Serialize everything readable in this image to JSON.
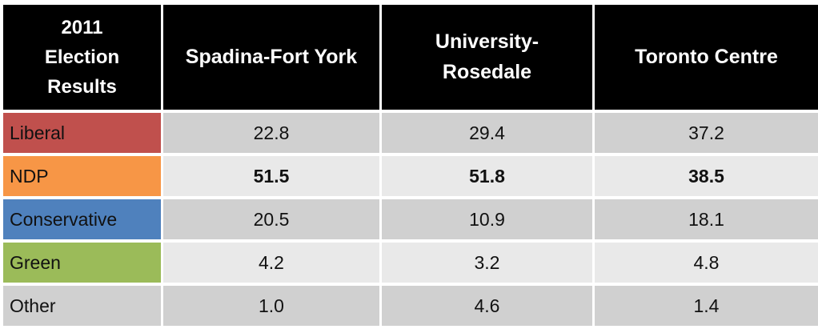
{
  "table": {
    "header": [
      "2011 Election Results",
      "Spadina-Fort York",
      "University-Rosedale",
      "Toronto Centre"
    ],
    "rows": [
      [
        "Liberal",
        "22.8",
        "29.4",
        "37.2"
      ],
      [
        "NDP",
        "51.5",
        "51.8",
        "38.5"
      ],
      [
        "Conservative",
        "20.5",
        "10.9",
        "18.1"
      ],
      [
        "Green",
        "4.2",
        "3.2",
        "4.8"
      ],
      [
        "Other",
        "1.0",
        "4.6",
        "1.4"
      ]
    ]
  }
}
